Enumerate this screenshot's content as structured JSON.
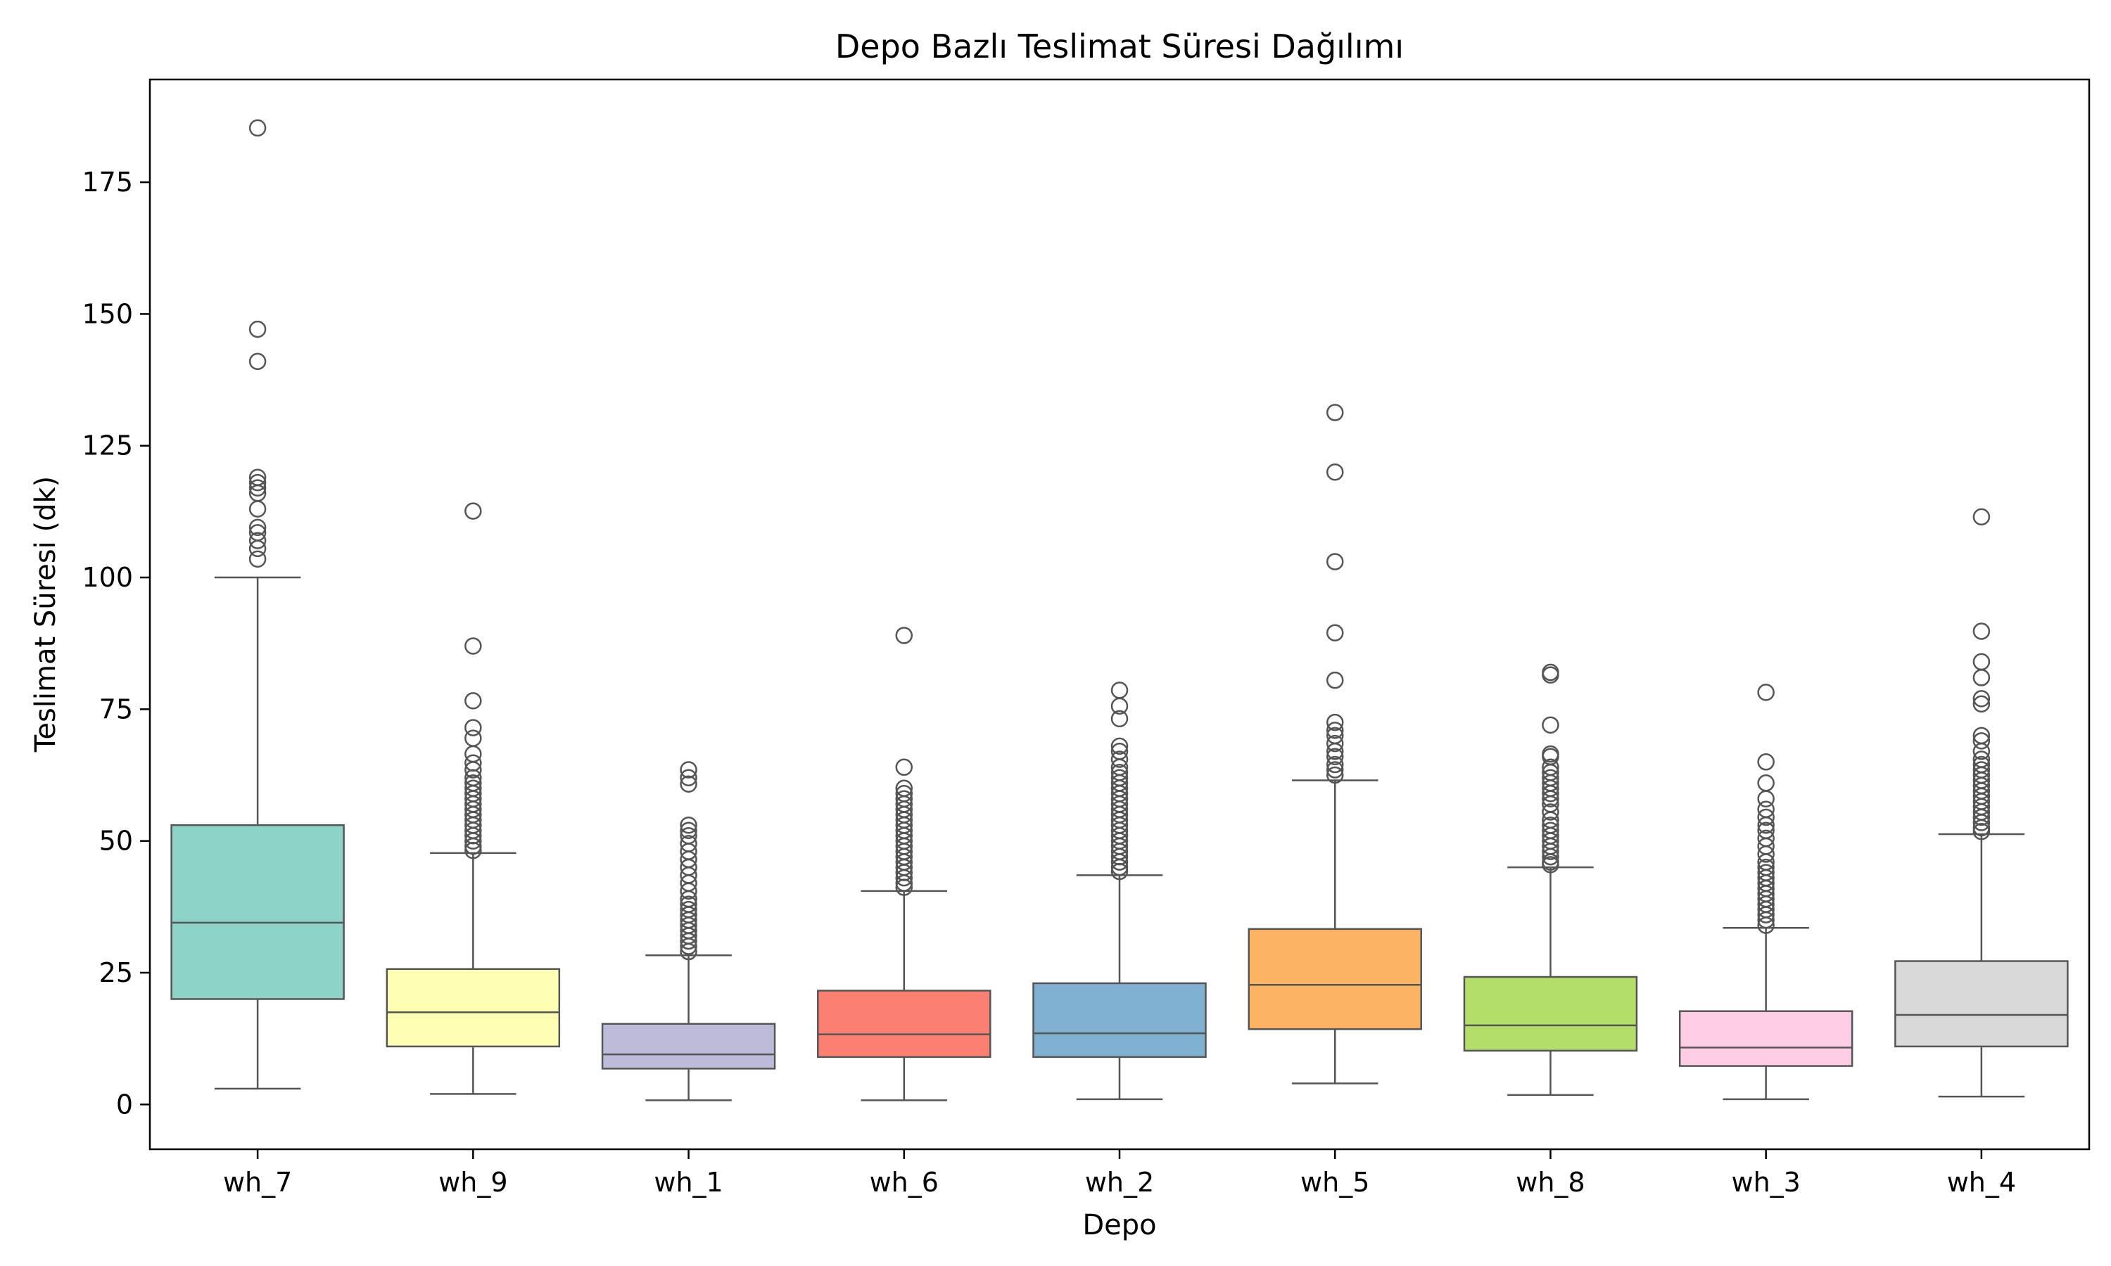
{
  "chart_data": {
    "type": "box",
    "title": "Depo Bazlı Teslimat Süresi Dağılımı",
    "xlabel": "Depo",
    "ylabel": "Teslimat Süresi (dk)",
    "ylim": [
      -8.5,
      194.5
    ],
    "yticks": [
      0,
      25,
      50,
      75,
      100,
      125,
      150,
      175
    ],
    "grid": false,
    "categories": [
      "wh_7",
      "wh_9",
      "wh_1",
      "wh_6",
      "wh_2",
      "wh_5",
      "wh_8",
      "wh_3",
      "wh_4"
    ],
    "boxes": [
      {
        "category": "wh_7",
        "color": "#8dd3c7",
        "whisker_low": 3.0,
        "q1": 20.0,
        "median": 34.5,
        "q3": 53.0,
        "whisker_high": 100.0,
        "outliers": [
          185.3,
          147.1,
          141.0,
          119.0,
          118.0,
          117.0,
          116.0,
          113.0,
          109.5,
          108.5,
          107.0,
          105.5,
          103.5
        ]
      },
      {
        "category": "wh_9",
        "color": "#ffffb3",
        "whisker_low": 2.0,
        "q1": 11.0,
        "median": 17.5,
        "q3": 25.7,
        "whisker_high": 47.7,
        "outliers": [
          112.6,
          87.0,
          76.6,
          71.5,
          69.5,
          66.5,
          64.8,
          63.5,
          62.0,
          61.0,
          60.0,
          59.0,
          58.0,
          57.0,
          56.0,
          55.0,
          54.0,
          53.0,
          52.0,
          51.0,
          50.0,
          49.0,
          48.2
        ]
      },
      {
        "category": "wh_1",
        "color": "#bebada",
        "whisker_low": 0.8,
        "q1": 6.8,
        "median": 9.5,
        "q3": 15.3,
        "whisker_high": 28.3,
        "outliers": [
          63.5,
          62.0,
          60.8,
          53.0,
          52.0,
          51.0,
          49.5,
          48.0,
          46.5,
          45.0,
          43.5,
          42.0,
          40.5,
          39.0,
          38.0,
          37.0,
          36.0,
          35.0,
          34.0,
          33.0,
          32.0,
          31.0,
          30.0,
          29.0
        ]
      },
      {
        "category": "wh_6",
        "color": "#fb8072",
        "whisker_low": 0.8,
        "q1": 9.0,
        "median": 13.3,
        "q3": 21.6,
        "whisker_high": 40.5,
        "outliers": [
          89.0,
          64.0,
          60.0,
          59.0,
          58.0,
          57.0,
          56.0,
          55.0,
          54.0,
          53.0,
          52.0,
          51.0,
          50.0,
          49.0,
          48.0,
          47.0,
          46.0,
          45.0,
          44.0,
          43.0,
          42.0,
          41.2
        ]
      },
      {
        "category": "wh_2",
        "color": "#80b1d3",
        "whisker_low": 1.0,
        "q1": 9.0,
        "median": 13.5,
        "q3": 23.0,
        "whisker_high": 43.5,
        "outliers": [
          78.6,
          75.6,
          73.2,
          68.0,
          67.0,
          65.5,
          64.0,
          63.0,
          62.0,
          61.0,
          60.0,
          59.0,
          58.0,
          57.0,
          56.0,
          55.0,
          54.0,
          53.0,
          52.0,
          51.0,
          50.0,
          49.0,
          48.0,
          47.0,
          46.0,
          45.0,
          44.2
        ]
      },
      {
        "category": "wh_5",
        "color": "#fdb462",
        "whisker_low": 4.0,
        "q1": 14.3,
        "median": 22.7,
        "q3": 33.3,
        "whisker_high": 61.5,
        "outliers": [
          131.3,
          120.0,
          103.0,
          89.5,
          80.5,
          72.5,
          71.0,
          70.0,
          68.5,
          67.0,
          66.0,
          64.5,
          63.5,
          62.5
        ]
      },
      {
        "category": "wh_8",
        "color": "#b3de69",
        "whisker_low": 1.8,
        "q1": 10.2,
        "median": 15.0,
        "q3": 24.2,
        "whisker_high": 45.0,
        "outliers": [
          82.0,
          81.5,
          72.0,
          66.5,
          66.0,
          64.0,
          63.0,
          62.0,
          61.0,
          60.0,
          59.0,
          58.0,
          57.0,
          55.5,
          54.0,
          53.0,
          52.0,
          51.0,
          50.0,
          49.0,
          48.0,
          47.0,
          46.0,
          45.5
        ]
      },
      {
        "category": "wh_3",
        "color": "#fccde5",
        "whisker_low": 1.0,
        "q1": 7.3,
        "median": 10.8,
        "q3": 17.7,
        "whisker_high": 33.5,
        "outliers": [
          78.2,
          65.0,
          61.0,
          58.0,
          56.0,
          54.5,
          53.0,
          52.0,
          50.5,
          49.0,
          47.5,
          46.0,
          45.0,
          44.0,
          43.0,
          42.0,
          41.0,
          40.0,
          39.0,
          38.0,
          37.0,
          36.0,
          35.0,
          34.0
        ]
      },
      {
        "category": "wh_4",
        "color": "#d9d9d9",
        "whisker_low": 1.5,
        "q1": 11.0,
        "median": 17.0,
        "q3": 27.2,
        "whisker_high": 51.3,
        "outliers": [
          111.5,
          89.8,
          84.0,
          81.0,
          77.0,
          76.0,
          70.0,
          69.0,
          67.0,
          65.5,
          64.5,
          63.5,
          62.5,
          61.5,
          60.5,
          59.5,
          58.5,
          57.5,
          56.5,
          55.5,
          54.5,
          53.5,
          52.5,
          51.8
        ]
      }
    ]
  }
}
